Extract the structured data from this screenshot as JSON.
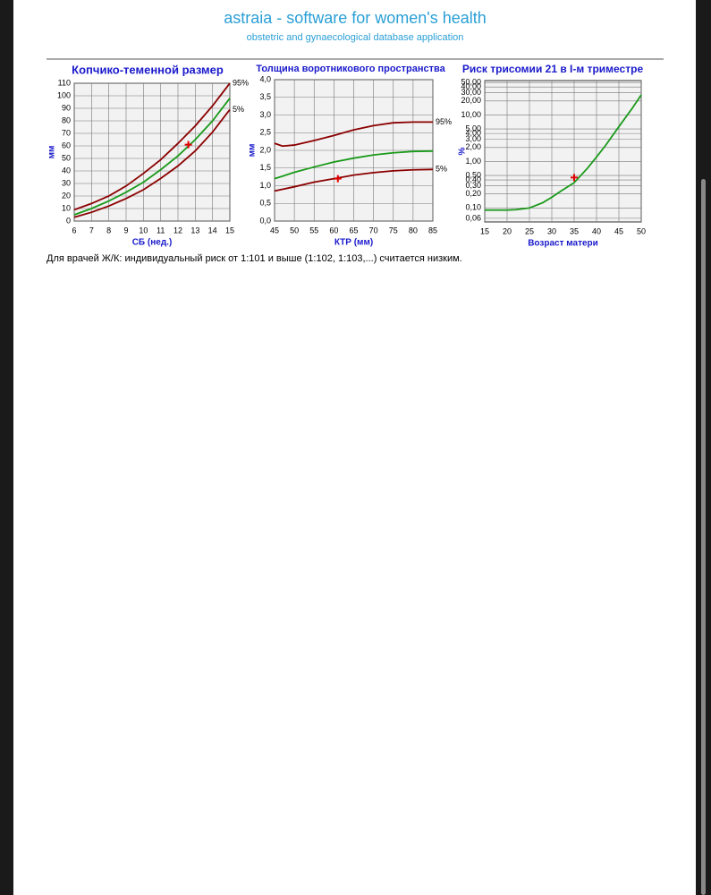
{
  "header": {
    "title": "astraia - software for women's health",
    "subtitle": "obstetric and gynaecological database application"
  },
  "chart_data": [
    {
      "type": "line",
      "title": "Копчико-теменной размер",
      "xlabel": "СБ (нед.)",
      "ylabel": "мм",
      "x": [
        6,
        7,
        8,
        9,
        10,
        11,
        12,
        13,
        14,
        15
      ],
      "xlim": [
        6,
        15
      ],
      "ylim": [
        0,
        110
      ],
      "xticks": [
        6,
        7,
        8,
        9,
        10,
        11,
        12,
        13,
        14,
        15
      ],
      "yticks": [
        0,
        10,
        20,
        30,
        40,
        50,
        60,
        70,
        80,
        90,
        100,
        110
      ],
      "grid": true,
      "log_scale": false,
      "series": [
        {
          "name": "95%",
          "color": "#8b0000",
          "values": [
            9,
            14,
            20,
            28,
            38,
            49,
            62,
            76,
            92,
            110
          ]
        },
        {
          "color": "#1a9a1a",
          "values": [
            5,
            10,
            16,
            23,
            31,
            41,
            52,
            65,
            80,
            98
          ]
        },
        {
          "name": "5%",
          "color": "#8b0000",
          "values": [
            3,
            7,
            12,
            18,
            25,
            34,
            44,
            56,
            71,
            89
          ]
        }
      ],
      "point": {
        "x": 12.6,
        "y": 61,
        "color": "#e00000"
      }
    },
    {
      "type": "line",
      "title": "Толщина воротникового пространства",
      "xlabel": "КТР (мм)",
      "ylabel": "мм",
      "x": [
        45,
        47,
        50,
        55,
        60,
        65,
        70,
        75,
        80,
        85
      ],
      "xlim": [
        45,
        85
      ],
      "ylim": [
        0,
        4
      ],
      "xticks": [
        45,
        50,
        55,
        60,
        65,
        70,
        75,
        80,
        85
      ],
      "yticks": [
        {
          "value": 0,
          "label": "0,0"
        },
        {
          "value": 0.5,
          "label": "0,5"
        },
        {
          "value": 1,
          "label": "1,0"
        },
        {
          "value": 1.5,
          "label": "1,5"
        },
        {
          "value": 2,
          "label": "2,0"
        },
        {
          "value": 2.5,
          "label": "2,5"
        },
        {
          "value": 3,
          "label": "3,0"
        },
        {
          "value": 3.5,
          "label": "3,5"
        },
        {
          "value": 4,
          "label": "4,0"
        }
      ],
      "grid": true,
      "log_scale": false,
      "series": [
        {
          "name": "95%",
          "color": "#8b0000",
          "values": [
            2.2,
            2.12,
            2.15,
            2.28,
            2.42,
            2.58,
            2.7,
            2.78,
            2.8,
            2.8
          ]
        },
        {
          "color": "#1a9a1a",
          "values": [
            1.2,
            1.27,
            1.38,
            1.53,
            1.67,
            1.78,
            1.87,
            1.93,
            1.97,
            1.98
          ]
        },
        {
          "name": "5%",
          "color": "#8b0000",
          "values": [
            0.85,
            0.9,
            0.97,
            1.1,
            1.2,
            1.3,
            1.37,
            1.42,
            1.45,
            1.46
          ]
        }
      ],
      "point": {
        "x": 61,
        "y": 1.2,
        "color": "#e00000"
      }
    },
    {
      "type": "line",
      "title": "Риск трисомии 21 в I-м триместре",
      "xlabel": "Возраст матери",
      "ylabel": "%",
      "x": [
        15,
        20,
        22,
        25,
        28,
        30,
        32,
        35,
        38,
        40,
        42,
        45,
        48,
        50
      ],
      "xlim": [
        15,
        50
      ],
      "ylim": [
        0.05,
        55
      ],
      "xticks": [
        15,
        20,
        25,
        30,
        35,
        40,
        45,
        50
      ],
      "yticks": [
        {
          "value": 50,
          "label": "50,00"
        },
        {
          "value": 40,
          "label": "40,00"
        },
        {
          "value": 30,
          "label": "30,00"
        },
        {
          "value": 20,
          "label": "20,00"
        },
        {
          "value": 10,
          "label": "10,00"
        },
        {
          "value": 5,
          "label": "5,00"
        },
        {
          "value": 4,
          "label": "4,00"
        },
        {
          "value": 3,
          "label": "3,00"
        },
        {
          "value": 2,
          "label": "2,00"
        },
        {
          "value": 1,
          "label": "1,00"
        },
        {
          "value": 0.5,
          "label": "0,50"
        },
        {
          "value": 0.4,
          "label": "0,40"
        },
        {
          "value": 0.3,
          "label": "0,30"
        },
        {
          "value": 0.2,
          "label": "0,20"
        },
        {
          "value": 0.1,
          "label": "0,10"
        },
        {
          "value": 0.06,
          "label": "0,06"
        }
      ],
      "grid": true,
      "log_scale": true,
      "series": [
        {
          "color": "#1a9a1a",
          "values": [
            0.09,
            0.09,
            0.092,
            0.1,
            0.13,
            0.17,
            0.23,
            0.35,
            0.72,
            1.25,
            2.2,
            5.6,
            14,
            27
          ]
        }
      ],
      "point": {
        "x": 35,
        "y": 0.45,
        "color": "#e00000"
      }
    }
  ],
  "note": "Для врачей Ж/К: индивидуальный риск от 1:101 и выше (1:102, 1:103,...) считается низким."
}
